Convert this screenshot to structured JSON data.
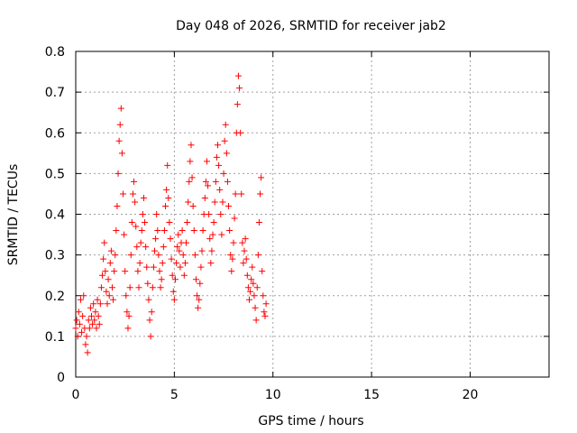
{
  "chart_data": {
    "type": "scatter",
    "title": "Day 048 of 2026, SRMTID for receiver jab2",
    "xlabel": "GPS time / hours",
    "ylabel": "SRMTID / TECUs",
    "xlim": [
      0,
      24
    ],
    "ylim": [
      0,
      0.8
    ],
    "xticks": [
      0,
      5,
      10,
      15,
      20
    ],
    "xtick_labels": [
      "0",
      "5",
      "10",
      "15",
      "20"
    ],
    "yticks": [
      0,
      0.1,
      0.2,
      0.3,
      0.4,
      0.5,
      0.6,
      0.7,
      0.8
    ],
    "ytick_labels": [
      "0",
      "0.1",
      "0.2",
      "0.3",
      "0.4",
      "0.5",
      "0.6",
      "0.7",
      "0.8"
    ],
    "grid": true,
    "marker": "+",
    "color": "#ff0000",
    "series": [
      {
        "name": "SRMTID",
        "points": [
          [
            0.0,
            0.12
          ],
          [
            0.05,
            0.14
          ],
          [
            0.1,
            0.1
          ],
          [
            0.15,
            0.16
          ],
          [
            0.2,
            0.13
          ],
          [
            0.25,
            0.19
          ],
          [
            0.3,
            0.11
          ],
          [
            0.35,
            0.15
          ],
          [
            0.4,
            0.2
          ],
          [
            0.45,
            0.12
          ],
          [
            0.5,
            0.08
          ],
          [
            0.55,
            0.1
          ],
          [
            0.6,
            0.06
          ],
          [
            0.65,
            0.14
          ],
          [
            0.7,
            0.12
          ],
          [
            0.75,
            0.17
          ],
          [
            0.8,
            0.15
          ],
          [
            0.85,
            0.13
          ],
          [
            0.9,
            0.18
          ],
          [
            0.95,
            0.14
          ],
          [
            1.0,
            0.16
          ],
          [
            1.05,
            0.12
          ],
          [
            1.1,
            0.19
          ],
          [
            1.15,
            0.15
          ],
          [
            1.2,
            0.13
          ],
          [
            1.25,
            0.18
          ],
          [
            1.3,
            0.22
          ],
          [
            1.35,
            0.25
          ],
          [
            1.4,
            0.29
          ],
          [
            1.45,
            0.33
          ],
          [
            1.5,
            0.26
          ],
          [
            1.55,
            0.21
          ],
          [
            1.6,
            0.18
          ],
          [
            1.65,
            0.24
          ],
          [
            1.7,
            0.2
          ],
          [
            1.75,
            0.28
          ],
          [
            1.8,
            0.31
          ],
          [
            1.85,
            0.22
          ],
          [
            1.9,
            0.19
          ],
          [
            1.95,
            0.26
          ],
          [
            2.0,
            0.3
          ],
          [
            2.05,
            0.36
          ],
          [
            2.1,
            0.42
          ],
          [
            2.15,
            0.5
          ],
          [
            2.2,
            0.58
          ],
          [
            2.25,
            0.62
          ],
          [
            2.3,
            0.66
          ],
          [
            2.35,
            0.55
          ],
          [
            2.4,
            0.45
          ],
          [
            2.45,
            0.35
          ],
          [
            2.5,
            0.26
          ],
          [
            2.55,
            0.2
          ],
          [
            2.6,
            0.16
          ],
          [
            2.65,
            0.12
          ],
          [
            2.7,
            0.15
          ],
          [
            2.75,
            0.22
          ],
          [
            2.8,
            0.3
          ],
          [
            2.85,
            0.38
          ],
          [
            2.9,
            0.45
          ],
          [
            2.95,
            0.48
          ],
          [
            3.0,
            0.43
          ],
          [
            3.05,
            0.37
          ],
          [
            3.1,
            0.32
          ],
          [
            3.15,
            0.26
          ],
          [
            3.2,
            0.22
          ],
          [
            3.25,
            0.28
          ],
          [
            3.3,
            0.33
          ],
          [
            3.35,
            0.36
          ],
          [
            3.4,
            0.4
          ],
          [
            3.45,
            0.44
          ],
          [
            3.5,
            0.38
          ],
          [
            3.55,
            0.32
          ],
          [
            3.6,
            0.27
          ],
          [
            3.65,
            0.23
          ],
          [
            3.7,
            0.19
          ],
          [
            3.75,
            0.14
          ],
          [
            3.8,
            0.1
          ],
          [
            3.85,
            0.16
          ],
          [
            3.9,
            0.22
          ],
          [
            3.95,
            0.27
          ],
          [
            4.0,
            0.31
          ],
          [
            4.05,
            0.34
          ],
          [
            4.1,
            0.4
          ],
          [
            4.15,
            0.36
          ],
          [
            4.2,
            0.3
          ],
          [
            4.25,
            0.26
          ],
          [
            4.3,
            0.22
          ],
          [
            4.35,
            0.24
          ],
          [
            4.4,
            0.28
          ],
          [
            4.45,
            0.32
          ],
          [
            4.5,
            0.36
          ],
          [
            4.55,
            0.42
          ],
          [
            4.6,
            0.46
          ],
          [
            4.65,
            0.52
          ],
          [
            4.7,
            0.44
          ],
          [
            4.75,
            0.38
          ],
          [
            4.8,
            0.34
          ],
          [
            4.85,
            0.29
          ],
          [
            4.9,
            0.25
          ],
          [
            4.95,
            0.21
          ],
          [
            5.0,
            0.19
          ],
          [
            5.05,
            0.24
          ],
          [
            5.1,
            0.28
          ],
          [
            5.15,
            0.32
          ],
          [
            5.2,
            0.35
          ],
          [
            5.25,
            0.31
          ],
          [
            5.3,
            0.27
          ],
          [
            5.35,
            0.33
          ],
          [
            5.4,
            0.36
          ],
          [
            5.45,
            0.3
          ],
          [
            5.5,
            0.25
          ],
          [
            5.55,
            0.28
          ],
          [
            5.6,
            0.33
          ],
          [
            5.65,
            0.38
          ],
          [
            5.7,
            0.43
          ],
          [
            5.75,
            0.48
          ],
          [
            5.8,
            0.53
          ],
          [
            5.85,
            0.57
          ],
          [
            5.9,
            0.49
          ],
          [
            5.95,
            0.42
          ],
          [
            6.0,
            0.36
          ],
          [
            6.05,
            0.3
          ],
          [
            6.1,
            0.24
          ],
          [
            6.15,
            0.2
          ],
          [
            6.2,
            0.17
          ],
          [
            6.25,
            0.19
          ],
          [
            6.3,
            0.23
          ],
          [
            6.35,
            0.27
          ],
          [
            6.4,
            0.31
          ],
          [
            6.45,
            0.36
          ],
          [
            6.5,
            0.4
          ],
          [
            6.55,
            0.44
          ],
          [
            6.6,
            0.48
          ],
          [
            6.65,
            0.53
          ],
          [
            6.7,
            0.47
          ],
          [
            6.75,
            0.4
          ],
          [
            6.8,
            0.34
          ],
          [
            6.85,
            0.28
          ],
          [
            6.9,
            0.31
          ],
          [
            6.95,
            0.35
          ],
          [
            7.0,
            0.38
          ],
          [
            7.05,
            0.43
          ],
          [
            7.1,
            0.48
          ],
          [
            7.15,
            0.54
          ],
          [
            7.2,
            0.57
          ],
          [
            7.25,
            0.52
          ],
          [
            7.3,
            0.46
          ],
          [
            7.35,
            0.4
          ],
          [
            7.4,
            0.35
          ],
          [
            7.45,
            0.43
          ],
          [
            7.5,
            0.5
          ],
          [
            7.55,
            0.58
          ],
          [
            7.6,
            0.62
          ],
          [
            7.65,
            0.55
          ],
          [
            7.7,
            0.48
          ],
          [
            7.75,
            0.42
          ],
          [
            7.8,
            0.36
          ],
          [
            7.85,
            0.3
          ],
          [
            7.9,
            0.26
          ],
          [
            7.95,
            0.29
          ],
          [
            8.0,
            0.33
          ],
          [
            8.05,
            0.39
          ],
          [
            8.1,
            0.45
          ],
          [
            8.15,
            0.6
          ],
          [
            8.2,
            0.67
          ],
          [
            8.25,
            0.74
          ],
          [
            8.3,
            0.71
          ],
          [
            8.35,
            0.6
          ],
          [
            8.4,
            0.45
          ],
          [
            8.45,
            0.33
          ],
          [
            8.5,
            0.28
          ],
          [
            8.55,
            0.31
          ],
          [
            8.6,
            0.34
          ],
          [
            8.65,
            0.29
          ],
          [
            8.7,
            0.25
          ],
          [
            8.75,
            0.22
          ],
          [
            8.8,
            0.19
          ],
          [
            8.85,
            0.21
          ],
          [
            8.9,
            0.24
          ],
          [
            8.95,
            0.27
          ],
          [
            9.0,
            0.23
          ],
          [
            9.05,
            0.2
          ],
          [
            9.1,
            0.17
          ],
          [
            9.15,
            0.14
          ],
          [
            9.2,
            0.22
          ],
          [
            9.25,
            0.3
          ],
          [
            9.3,
            0.38
          ],
          [
            9.35,
            0.45
          ],
          [
            9.4,
            0.49
          ],
          [
            9.45,
            0.26
          ],
          [
            9.5,
            0.2
          ],
          [
            9.55,
            0.16
          ],
          [
            9.6,
            0.15
          ],
          [
            9.65,
            0.18
          ]
        ]
      }
    ]
  }
}
